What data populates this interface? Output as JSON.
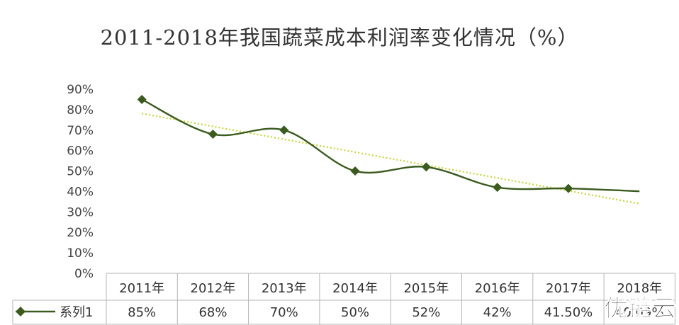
{
  "chart_data": {
    "type": "line",
    "title": "2011-2018年我国蔬菜成本利润率变化情况（%）",
    "categories": [
      "2011年",
      "2012年",
      "2013年",
      "2014年",
      "2015年",
      "2016年",
      "2017年",
      "2018年"
    ],
    "series": [
      {
        "name": "系列1",
        "values": [
          85,
          68,
          70,
          50,
          52,
          42,
          41.5,
          40.09
        ],
        "value_labels": [
          "85%",
          "68%",
          "70%",
          "50%",
          "52%",
          "42%",
          "41.50%",
          "40.09%"
        ],
        "color": "#3a5a1e",
        "marker": "diamond"
      }
    ],
    "trendline": {
      "type": "linear",
      "style": "dotted",
      "color": "#c8d43a"
    },
    "yticks": [
      "0%",
      "10%",
      "20%",
      "30%",
      "40%",
      "50%",
      "60%",
      "70%",
      "80%",
      "90%"
    ],
    "ylim": [
      0,
      90
    ],
    "grid": false,
    "legend": "data-table",
    "data_table": true
  },
  "watermark": "优链云"
}
